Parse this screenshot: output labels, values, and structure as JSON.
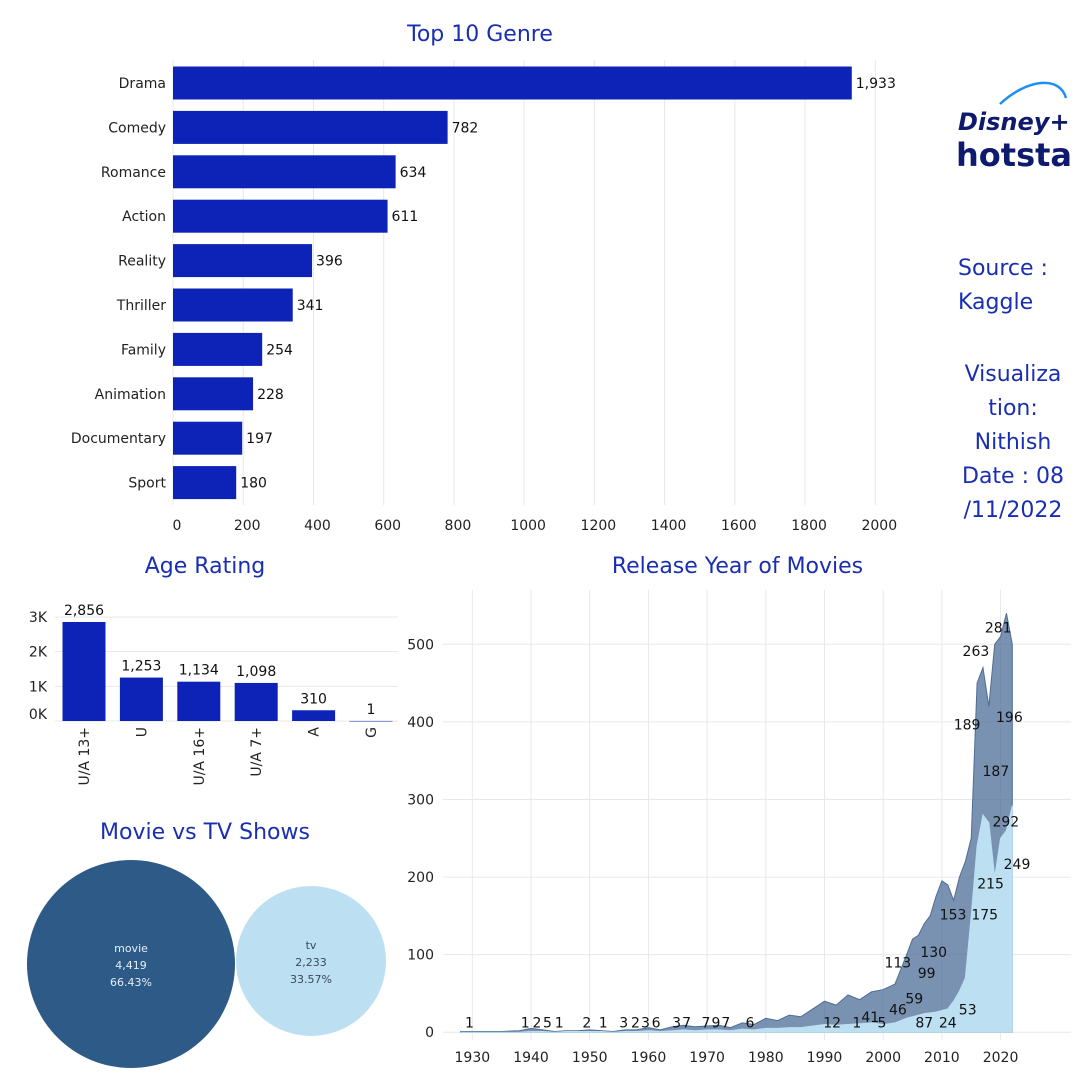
{
  "colors": {
    "accent": "#0d23b7",
    "title": "#1a2fb0",
    "area_dark": "#4e6d97",
    "area_light": "#bcdff1",
    "bubble_movie": "#2d5a87",
    "bubble_tv": "#bcdff1",
    "grid": "#e8e8e8"
  },
  "logo": {
    "line1": "Disney+",
    "line2": "hotstar"
  },
  "side": {
    "source": "Source : Kaggle",
    "viz_lines": [
      "Visualiza",
      "tion:",
      "Nithish",
      "Date : 08",
      "/11/2022"
    ]
  },
  "chart_data": [
    {
      "type": "bar",
      "orientation": "horizontal",
      "title": "Top 10 Genre",
      "categories": [
        "Drama",
        "Comedy",
        "Romance",
        "Action",
        "Reality",
        "Thriller",
        "Family",
        "Animation",
        "Documentary",
        "Sport"
      ],
      "values": [
        1933,
        782,
        634,
        611,
        396,
        341,
        254,
        228,
        197,
        180
      ],
      "value_labels": [
        "1,933",
        "782",
        "634",
        "611",
        "396",
        "341",
        "254",
        "228",
        "197",
        "180"
      ],
      "xticks": [
        0,
        200,
        400,
        600,
        800,
        1000,
        1200,
        1400,
        1600,
        1800,
        2000
      ],
      "xlim": [
        0,
        2170
      ]
    },
    {
      "type": "bar",
      "title": "Age Rating",
      "categories": [
        "U/A 13+",
        "U",
        "U/A 16+",
        "U/A 7+",
        "A",
        "G"
      ],
      "values": [
        2856,
        1253,
        1134,
        1098,
        310,
        1
      ],
      "value_labels": [
        "2,856",
        "1,253",
        "1,134",
        "1,098",
        "310",
        "1"
      ],
      "yticks": [
        {
          "v": 0,
          "label": "0K"
        },
        {
          "v": 1000,
          "label": "1K"
        },
        {
          "v": 2000,
          "label": "2K"
        },
        {
          "v": 3000,
          "label": "3K"
        }
      ],
      "ylim": [
        0,
        3000
      ]
    },
    {
      "type": "bubble",
      "title": "Movie vs TV Shows",
      "items": [
        {
          "name": "movie",
          "count": "4,419",
          "pct": "66.43%"
        },
        {
          "name": "tv",
          "count": "2,233",
          "pct": "33.57%"
        }
      ]
    },
    {
      "type": "area",
      "title": "Release Year of Movies",
      "x": [
        1928,
        1935,
        1938,
        1940,
        1942,
        1944,
        1946,
        1948,
        1950,
        1952,
        1954,
        1956,
        1958,
        1960,
        1962,
        1964,
        1966,
        1968,
        1970,
        1972,
        1974,
        1976,
        1978,
        1980,
        1982,
        1984,
        1986,
        1988,
        1990,
        1992,
        1994,
        1996,
        1998,
        2000,
        2002,
        2004,
        2005,
        2006,
        2007,
        2008,
        2009,
        2010,
        2011,
        2012,
        2013,
        2014,
        2015,
        2016,
        2017,
        2018,
        2019,
        2020,
        2021,
        2022
      ],
      "series": [
        {
          "values": [
            1,
            1,
            2,
            5,
            3,
            1,
            2,
            2,
            3,
            2,
            1,
            3,
            3,
            6,
            3,
            7,
            9,
            7,
            8,
            9,
            6,
            12,
            10,
            18,
            15,
            22,
            20,
            30,
            40,
            35,
            48,
            42,
            52,
            55,
            62,
            100,
            120,
            125,
            140,
            150,
            175,
            195,
            190,
            170,
            200,
            220,
            250,
            450,
            470,
            420,
            500,
            510,
            540,
            500
          ]
        },
        {
          "values": [
            0,
            0,
            0,
            1,
            1,
            0,
            1,
            1,
            1,
            1,
            0,
            1,
            1,
            2,
            1,
            2,
            3,
            2,
            3,
            3,
            2,
            4,
            3,
            5,
            5,
            6,
            6,
            8,
            10,
            9,
            10,
            11,
            12,
            10,
            12,
            18,
            20,
            22,
            24,
            25,
            26,
            28,
            30,
            40,
            53,
            70,
            150,
            240,
            280,
            270,
            200,
            250,
            260,
            292
          ]
        }
      ],
      "value_labels": [
        {
          "text": "1",
          "x": 1929.5,
          "y": 1
        },
        {
          "text": "1",
          "x": 1939,
          "y": 1
        },
        {
          "text": "2",
          "x": 1941,
          "y": 1
        },
        {
          "text": "5",
          "x": 1942.8,
          "y": 1
        },
        {
          "text": "1",
          "x": 1944.8,
          "y": 1
        },
        {
          "text": "2",
          "x": 1949.5,
          "y": 1
        },
        {
          "text": "1",
          "x": 1952.3,
          "y": 1
        },
        {
          "text": "3",
          "x": 1955.8,
          "y": 1
        },
        {
          "text": "2",
          "x": 1957.8,
          "y": 1
        },
        {
          "text": "3",
          "x": 1959.5,
          "y": 1
        },
        {
          "text": "6",
          "x": 1961.3,
          "y": 1
        },
        {
          "text": "3",
          "x": 1964.8,
          "y": 1
        },
        {
          "text": "7",
          "x": 1966.5,
          "y": 1
        },
        {
          "text": "7",
          "x": 1969.8,
          "y": 1
        },
        {
          "text": "9",
          "x": 1971.5,
          "y": 1
        },
        {
          "text": "7",
          "x": 1973.2,
          "y": 1
        },
        {
          "text": "6",
          "x": 1977.3,
          "y": 1
        },
        {
          "text": "12",
          "x": 1991.3,
          "y": 1
        },
        {
          "text": "1",
          "x": 1995.5,
          "y": 1
        },
        {
          "text": "41",
          "x": 1997.8,
          "y": 8
        },
        {
          "text": "5",
          "x": 1999.8,
          "y": 1
        },
        {
          "text": "46",
          "x": 2002.5,
          "y": 18
        },
        {
          "text": "59",
          "x": 2005.3,
          "y": 32
        },
        {
          "text": "87",
          "x": 2007,
          "y": 1
        },
        {
          "text": "24",
          "x": 2011,
          "y": 1
        },
        {
          "text": "53",
          "x": 2014.4,
          "y": 18
        },
        {
          "text": "113",
          "x": 2002.5,
          "y": 78
        },
        {
          "text": "99",
          "x": 2007.4,
          "y": 65
        },
        {
          "text": "130",
          "x": 2008.6,
          "y": 92
        },
        {
          "text": "153",
          "x": 2011.9,
          "y": 140
        },
        {
          "text": "175",
          "x": 2017.3,
          "y": 140
        },
        {
          "text": "215",
          "x": 2018.3,
          "y": 180
        },
        {
          "text": "249",
          "x": 2022.8,
          "y": 205
        },
        {
          "text": "292",
          "x": 2020.9,
          "y": 260
        },
        {
          "text": "187",
          "x": 2019.2,
          "y": 325
        },
        {
          "text": "189",
          "x": 2014.3,
          "y": 385
        },
        {
          "text": "196",
          "x": 2021.5,
          "y": 395
        },
        {
          "text": "263",
          "x": 2015.8,
          "y": 480
        },
        {
          "text": "281",
          "x": 2019.6,
          "y": 510
        }
      ],
      "xticks": [
        1930,
        1940,
        1950,
        1960,
        1970,
        1980,
        1990,
        2000,
        2010,
        2020
      ],
      "yticks": [
        0,
        100,
        200,
        300,
        400,
        500
      ],
      "xlim": [
        1925,
        2032
      ],
      "ylim": [
        -10,
        570
      ]
    }
  ]
}
